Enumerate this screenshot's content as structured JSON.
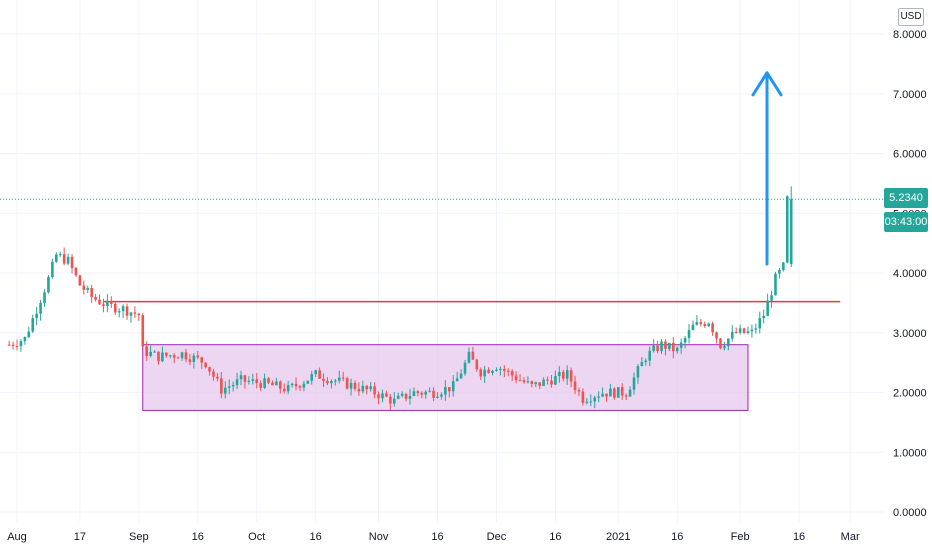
{
  "currency_button": "USD",
  "price_tag": "5.2340",
  "countdown_tag": "03:43:00",
  "colors": {
    "up": "#26a69a",
    "down": "#ef5350",
    "resistance": "#e53935",
    "range_fill": "#e6c8ec",
    "range_border": "#9c27b0",
    "arrow": "#2196f3",
    "tag": "#26a69a",
    "grid": "#f0f3fa",
    "axis_text": "#131722"
  },
  "chart_data": {
    "type": "candlestick",
    "x_ticks": [
      "Aug",
      "17",
      "Sep",
      "16",
      "Oct",
      "16",
      "Nov",
      "16",
      "Dec",
      "16",
      "2021",
      "16",
      "Feb",
      "16",
      "Mar"
    ],
    "y_ticks": [
      "0.0000",
      "1.0000",
      "2.0000",
      "3.0000",
      "4.0000",
      "5.0000",
      "6.0000",
      "7.0000",
      "8.0000"
    ],
    "ylim": [
      0,
      8.5
    ],
    "last_price": 5.234,
    "resistance_level": 3.52,
    "range_box": {
      "low": 1.7,
      "high": 2.8,
      "from": "2020-09-02",
      "to": "2021-02-03"
    },
    "arrow": {
      "from": 4.15,
      "to": 7.35
    },
    "price_path": [
      [
        "2020-07-30",
        2.8
      ],
      [
        "2020-08-03",
        2.9
      ],
      [
        "2020-08-06",
        3.4
      ],
      [
        "2020-08-09",
        3.9
      ],
      [
        "2020-08-11",
        4.3
      ],
      [
        "2020-08-14",
        4.2
      ],
      [
        "2020-08-17",
        3.8
      ],
      [
        "2020-08-20",
        3.6
      ],
      [
        "2020-08-24",
        3.45
      ],
      [
        "2020-08-28",
        3.4
      ],
      [
        "2020-09-01",
        3.3
      ],
      [
        "2020-09-02",
        2.7
      ],
      [
        "2020-09-06",
        2.6
      ],
      [
        "2020-09-12",
        2.65
      ],
      [
        "2020-09-18",
        2.5
      ],
      [
        "2020-09-22",
        2.05
      ],
      [
        "2020-09-27",
        2.2
      ],
      [
        "2020-10-03",
        2.15
      ],
      [
        "2020-10-09",
        2.05
      ],
      [
        "2020-10-16",
        2.3
      ],
      [
        "2020-10-21",
        2.2
      ],
      [
        "2020-10-26",
        2.1
      ],
      [
        "2020-10-31",
        2.0
      ],
      [
        "2020-11-05",
        1.85
      ],
      [
        "2020-11-10",
        2.0
      ],
      [
        "2020-11-15",
        2.0
      ],
      [
        "2020-11-20",
        2.1
      ],
      [
        "2020-11-24",
        2.6
      ],
      [
        "2020-11-27",
        2.35
      ],
      [
        "2020-12-01",
        2.45
      ],
      [
        "2020-12-06",
        2.25
      ],
      [
        "2020-12-10",
        2.1
      ],
      [
        "2020-12-14",
        2.2
      ],
      [
        "2020-12-19",
        2.3
      ],
      [
        "2020-12-23",
        1.9
      ],
      [
        "2020-12-28",
        2.0
      ],
      [
        "2021-01-03",
        2.0
      ],
      [
        "2021-01-08",
        2.6
      ],
      [
        "2021-01-12",
        2.8
      ],
      [
        "2021-01-16",
        2.7
      ],
      [
        "2021-01-20",
        3.1
      ],
      [
        "2021-01-24",
        3.2
      ],
      [
        "2021-01-27",
        2.8
      ],
      [
        "2021-01-31",
        3.0
      ],
      [
        "2021-02-04",
        3.0
      ],
      [
        "2021-02-07",
        3.3
      ],
      [
        "2021-02-10",
        3.9
      ],
      [
        "2021-02-12",
        4.1
      ],
      [
        "2021-02-13",
        5.23
      ]
    ]
  }
}
